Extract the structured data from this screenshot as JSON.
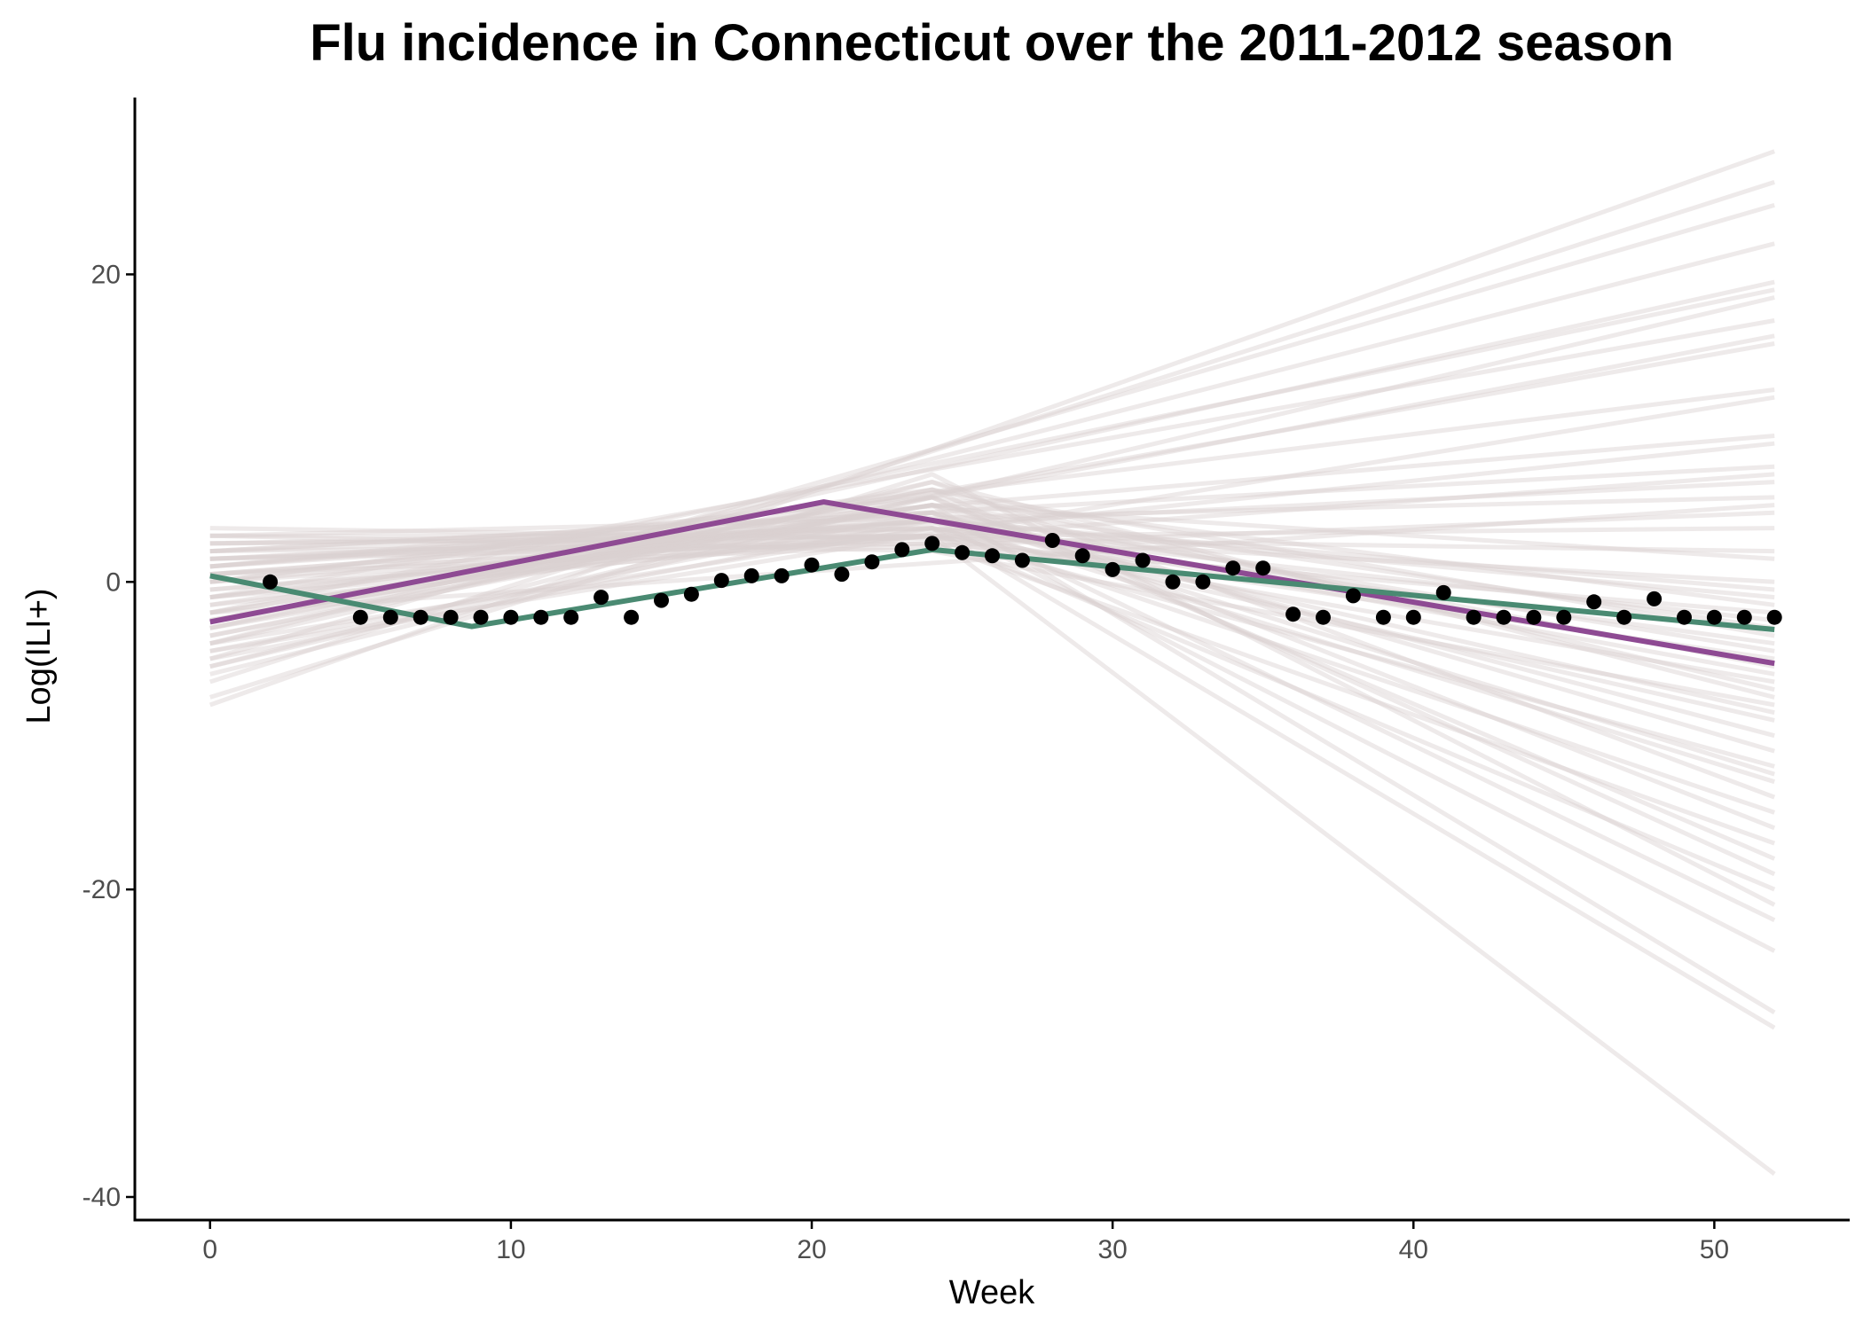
{
  "chart_data": {
    "type": "line",
    "title": "Flu incidence in Connecticut over the 2011-2012 season",
    "xlabel": "Week",
    "ylabel": "Log(ILI+)",
    "xlim": [
      -2.5,
      54.5
    ],
    "ylim": [
      -41.5,
      31.5
    ],
    "x_ticks": [
      0,
      10,
      20,
      30,
      40,
      50
    ],
    "y_ticks": [
      -40,
      -20,
      0,
      20
    ],
    "grid": false,
    "legend": "none",
    "colors": {
      "observed": "#000000",
      "fit_green": "#4a8a72",
      "fit_purple": "#8e4a93",
      "posterior": "#d9d0d0"
    },
    "observed_points": {
      "x": [
        2,
        5,
        6,
        7,
        8,
        9,
        10,
        11,
        12,
        13,
        14,
        15,
        16,
        17,
        18,
        19,
        20,
        21,
        22,
        23,
        24,
        25,
        26,
        27,
        28,
        29,
        30,
        31,
        32,
        33,
        34,
        35,
        36,
        37,
        38,
        39,
        40,
        41,
        42,
        43,
        44,
        45,
        46,
        47,
        48,
        49,
        50,
        51,
        52
      ],
      "y": [
        0,
        -2.3,
        -2.3,
        -2.3,
        -2.3,
        -2.3,
        -2.3,
        -2.3,
        -2.3,
        -1.0,
        -2.3,
        -1.2,
        -0.8,
        0.1,
        0.4,
        0.4,
        1.1,
        0.5,
        1.3,
        2.1,
        2.5,
        1.9,
        1.7,
        1.4,
        2.7,
        1.7,
        0.8,
        1.4,
        0,
        0,
        0.9,
        0.9,
        -2.1,
        -2.3,
        -0.9,
        -2.3,
        -2.3,
        -0.7,
        -2.3,
        -2.3,
        -2.3,
        -2.3,
        -1.3,
        -2.3,
        -1.1,
        -2.3,
        -2.3,
        -2.3,
        -2.3
      ]
    },
    "series": [
      {
        "x": [
          0,
          8.7,
          24,
          52
        ],
        "y": [
          0.4,
          -2.9,
          2.1,
          -3.1
        ]
      },
      {
        "x": [
          0,
          20.4,
          52
        ],
        "y": [
          -2.6,
          5.2,
          -5.3
        ]
      }
    ],
    "posterior_lines": [
      [
        0,
        3.0,
        24,
        3.0,
        52,
        -38.5
      ],
      [
        0,
        2.5,
        24,
        3.5,
        52,
        -29.0
      ],
      [
        0,
        -2.0,
        24,
        5.0,
        52,
        -28.0
      ],
      [
        0,
        1.0,
        24,
        4.0,
        52,
        -24.0
      ],
      [
        0,
        -1.0,
        24,
        4.5,
        52,
        -22.0
      ],
      [
        0,
        0.5,
        24,
        3.0,
        52,
        -20.0
      ],
      [
        0,
        -3.0,
        24,
        6.0,
        52,
        -19.0
      ],
      [
        0,
        2.0,
        24,
        2.5,
        52,
        -17.0
      ],
      [
        0,
        -1.5,
        24,
        5.5,
        52,
        -16.0
      ],
      [
        0,
        1.5,
        24,
        3.5,
        52,
        -15.0
      ],
      [
        0,
        -4.0,
        24,
        6.5,
        52,
        -14.0
      ],
      [
        0,
        0.0,
        24,
        4.0,
        52,
        -13.0
      ],
      [
        0,
        2.5,
        24,
        3.0,
        52,
        -12.0
      ],
      [
        0,
        -2.5,
        24,
        5.0,
        52,
        -11.0
      ],
      [
        0,
        1.0,
        24,
        4.5,
        52,
        -10.0
      ],
      [
        0,
        -0.5,
        24,
        3.5,
        52,
        -9.0
      ],
      [
        0,
        3.0,
        24,
        2.0,
        52,
        -8.0
      ],
      [
        0,
        -3.5,
        24,
        6.0,
        52,
        -7.0
      ],
      [
        0,
        0.5,
        24,
        4.0,
        52,
        -6.0
      ],
      [
        0,
        -1.0,
        24,
        3.0,
        52,
        -5.0
      ],
      [
        0,
        2.0,
        24,
        3.5,
        52,
        -4.0
      ],
      [
        0,
        -2.0,
        24,
        5.0,
        52,
        -3.0
      ],
      [
        0,
        1.5,
        24,
        2.5,
        52,
        -2.0
      ],
      [
        0,
        -5.0,
        24,
        4.0,
        52,
        -1.0
      ],
      [
        0,
        0.0,
        24,
        3.0,
        52,
        0.0
      ],
      [
        0,
        -6.0,
        24,
        5.5,
        52,
        -18.0
      ],
      [
        0,
        -7.5,
        24,
        7.0,
        52,
        -21.0
      ],
      [
        0,
        -4.5,
        24,
        4.5,
        52,
        -12.5
      ],
      [
        0,
        -8.0,
        0,
        -8.0,
        52,
        28.0
      ],
      [
        0,
        -6.5,
        0,
        -6.5,
        52,
        26.0
      ],
      [
        0,
        -5.0,
        0,
        -5.0,
        52,
        24.5
      ],
      [
        0,
        -4.0,
        0,
        -4.0,
        52,
        22.0
      ],
      [
        0,
        -3.0,
        0,
        -3.0,
        52,
        19.5
      ],
      [
        0,
        -2.0,
        0,
        -2.0,
        52,
        19.0
      ],
      [
        0,
        -5.5,
        0,
        -5.5,
        52,
        18.5
      ],
      [
        0,
        -1.0,
        0,
        -1.0,
        52,
        17.0
      ],
      [
        0,
        -3.5,
        0,
        -3.5,
        52,
        16.0
      ],
      [
        0,
        -2.5,
        0,
        -2.5,
        52,
        15.5
      ],
      [
        0,
        0.0,
        0,
        0.0,
        52,
        12.5
      ],
      [
        0,
        -4.5,
        0,
        -4.5,
        52,
        12.0
      ],
      [
        0,
        1.0,
        0,
        1.0,
        52,
        9.5
      ],
      [
        0,
        -1.5,
        0,
        -1.5,
        52,
        9.0
      ],
      [
        0,
        2.0,
        0,
        2.0,
        52,
        7.5
      ],
      [
        0,
        -0.5,
        0,
        -0.5,
        52,
        7.0
      ],
      [
        0,
        1.5,
        0,
        1.5,
        52,
        6.5
      ],
      [
        0,
        3.0,
        0,
        3.0,
        52,
        5.5
      ],
      [
        0,
        -2.0,
        0,
        -2.0,
        52,
        5.0
      ],
      [
        0,
        0.5,
        0,
        0.5,
        52,
        4.5
      ],
      [
        0,
        2.5,
        0,
        2.5,
        52,
        3.5
      ],
      [
        0,
        3.5,
        0,
        3.5,
        52,
        2.0
      ],
      [
        0,
        -3.0,
        24,
        5.0,
        52,
        1.5
      ],
      [
        0,
        -1.0,
        24,
        4.0,
        52,
        -0.5
      ],
      [
        0,
        1.0,
        24,
        5.5,
        52,
        -1.5
      ],
      [
        0,
        -4.0,
        24,
        3.5,
        52,
        -2.5
      ],
      [
        0,
        0.0,
        24,
        6.0,
        52,
        -3.5
      ],
      [
        0,
        2.0,
        24,
        4.5,
        52,
        -4.5
      ],
      [
        0,
        -2.5,
        24,
        5.0,
        52,
        -5.5
      ],
      [
        0,
        1.5,
        24,
        3.0,
        52,
        -6.5
      ],
      [
        0,
        -5.5,
        24,
        6.5,
        52,
        -7.5
      ],
      [
        0,
        0.5,
        24,
        4.0,
        52,
        -8.5
      ]
    ]
  }
}
